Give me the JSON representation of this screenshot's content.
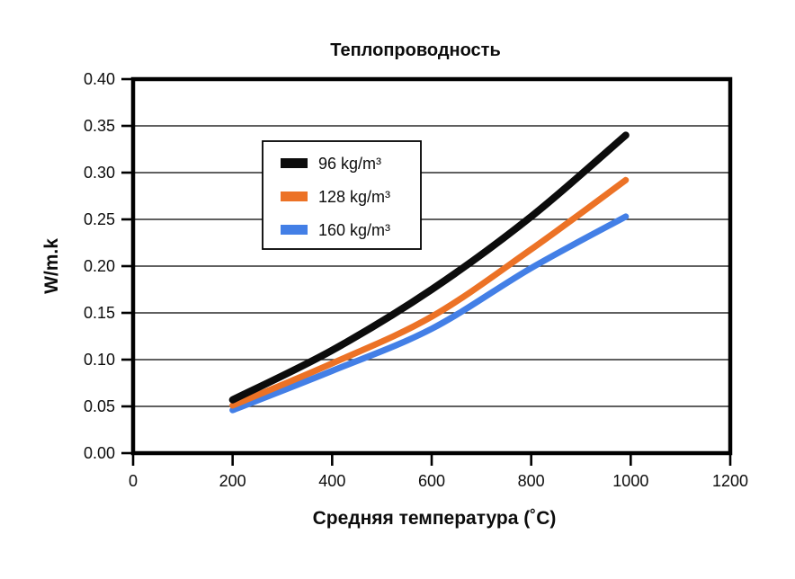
{
  "page": {
    "background": "#ffffff"
  },
  "chart_data": {
    "type": "line",
    "title": "Теплопроводность",
    "xlabel": "Средняя температура (˚C)",
    "ylabel": "W/m.k",
    "xlim": [
      0,
      1200
    ],
    "ylim": [
      0,
      0.4
    ],
    "x_ticks": [
      0,
      200,
      400,
      600,
      800,
      1000,
      1200
    ],
    "y_ticks": [
      0.0,
      0.05,
      0.1,
      0.15,
      0.2,
      0.25,
      0.3,
      0.35,
      0.4
    ],
    "grid": "horizontal",
    "frame_color": "#000000",
    "gridline_color": "#2b2b2b",
    "legend_position": "upper-left-inside",
    "series": [
      {
        "name": "96 kg/m³",
        "color": "#0c0c0c",
        "x": [
          200,
          400,
          600,
          800,
          990
        ],
        "y": [
          0.057,
          0.11,
          0.175,
          0.253,
          0.34
        ]
      },
      {
        "name": "128 kg/m³",
        "color": "#ec7226",
        "x": [
          200,
          400,
          600,
          800,
          990
        ],
        "y": [
          0.051,
          0.096,
          0.146,
          0.218,
          0.292
        ]
      },
      {
        "name": "160 kg/m³",
        "color": "#437fe6",
        "x": [
          200,
          400,
          600,
          800,
          990
        ],
        "y": [
          0.046,
          0.088,
          0.133,
          0.198,
          0.253
        ]
      }
    ]
  }
}
